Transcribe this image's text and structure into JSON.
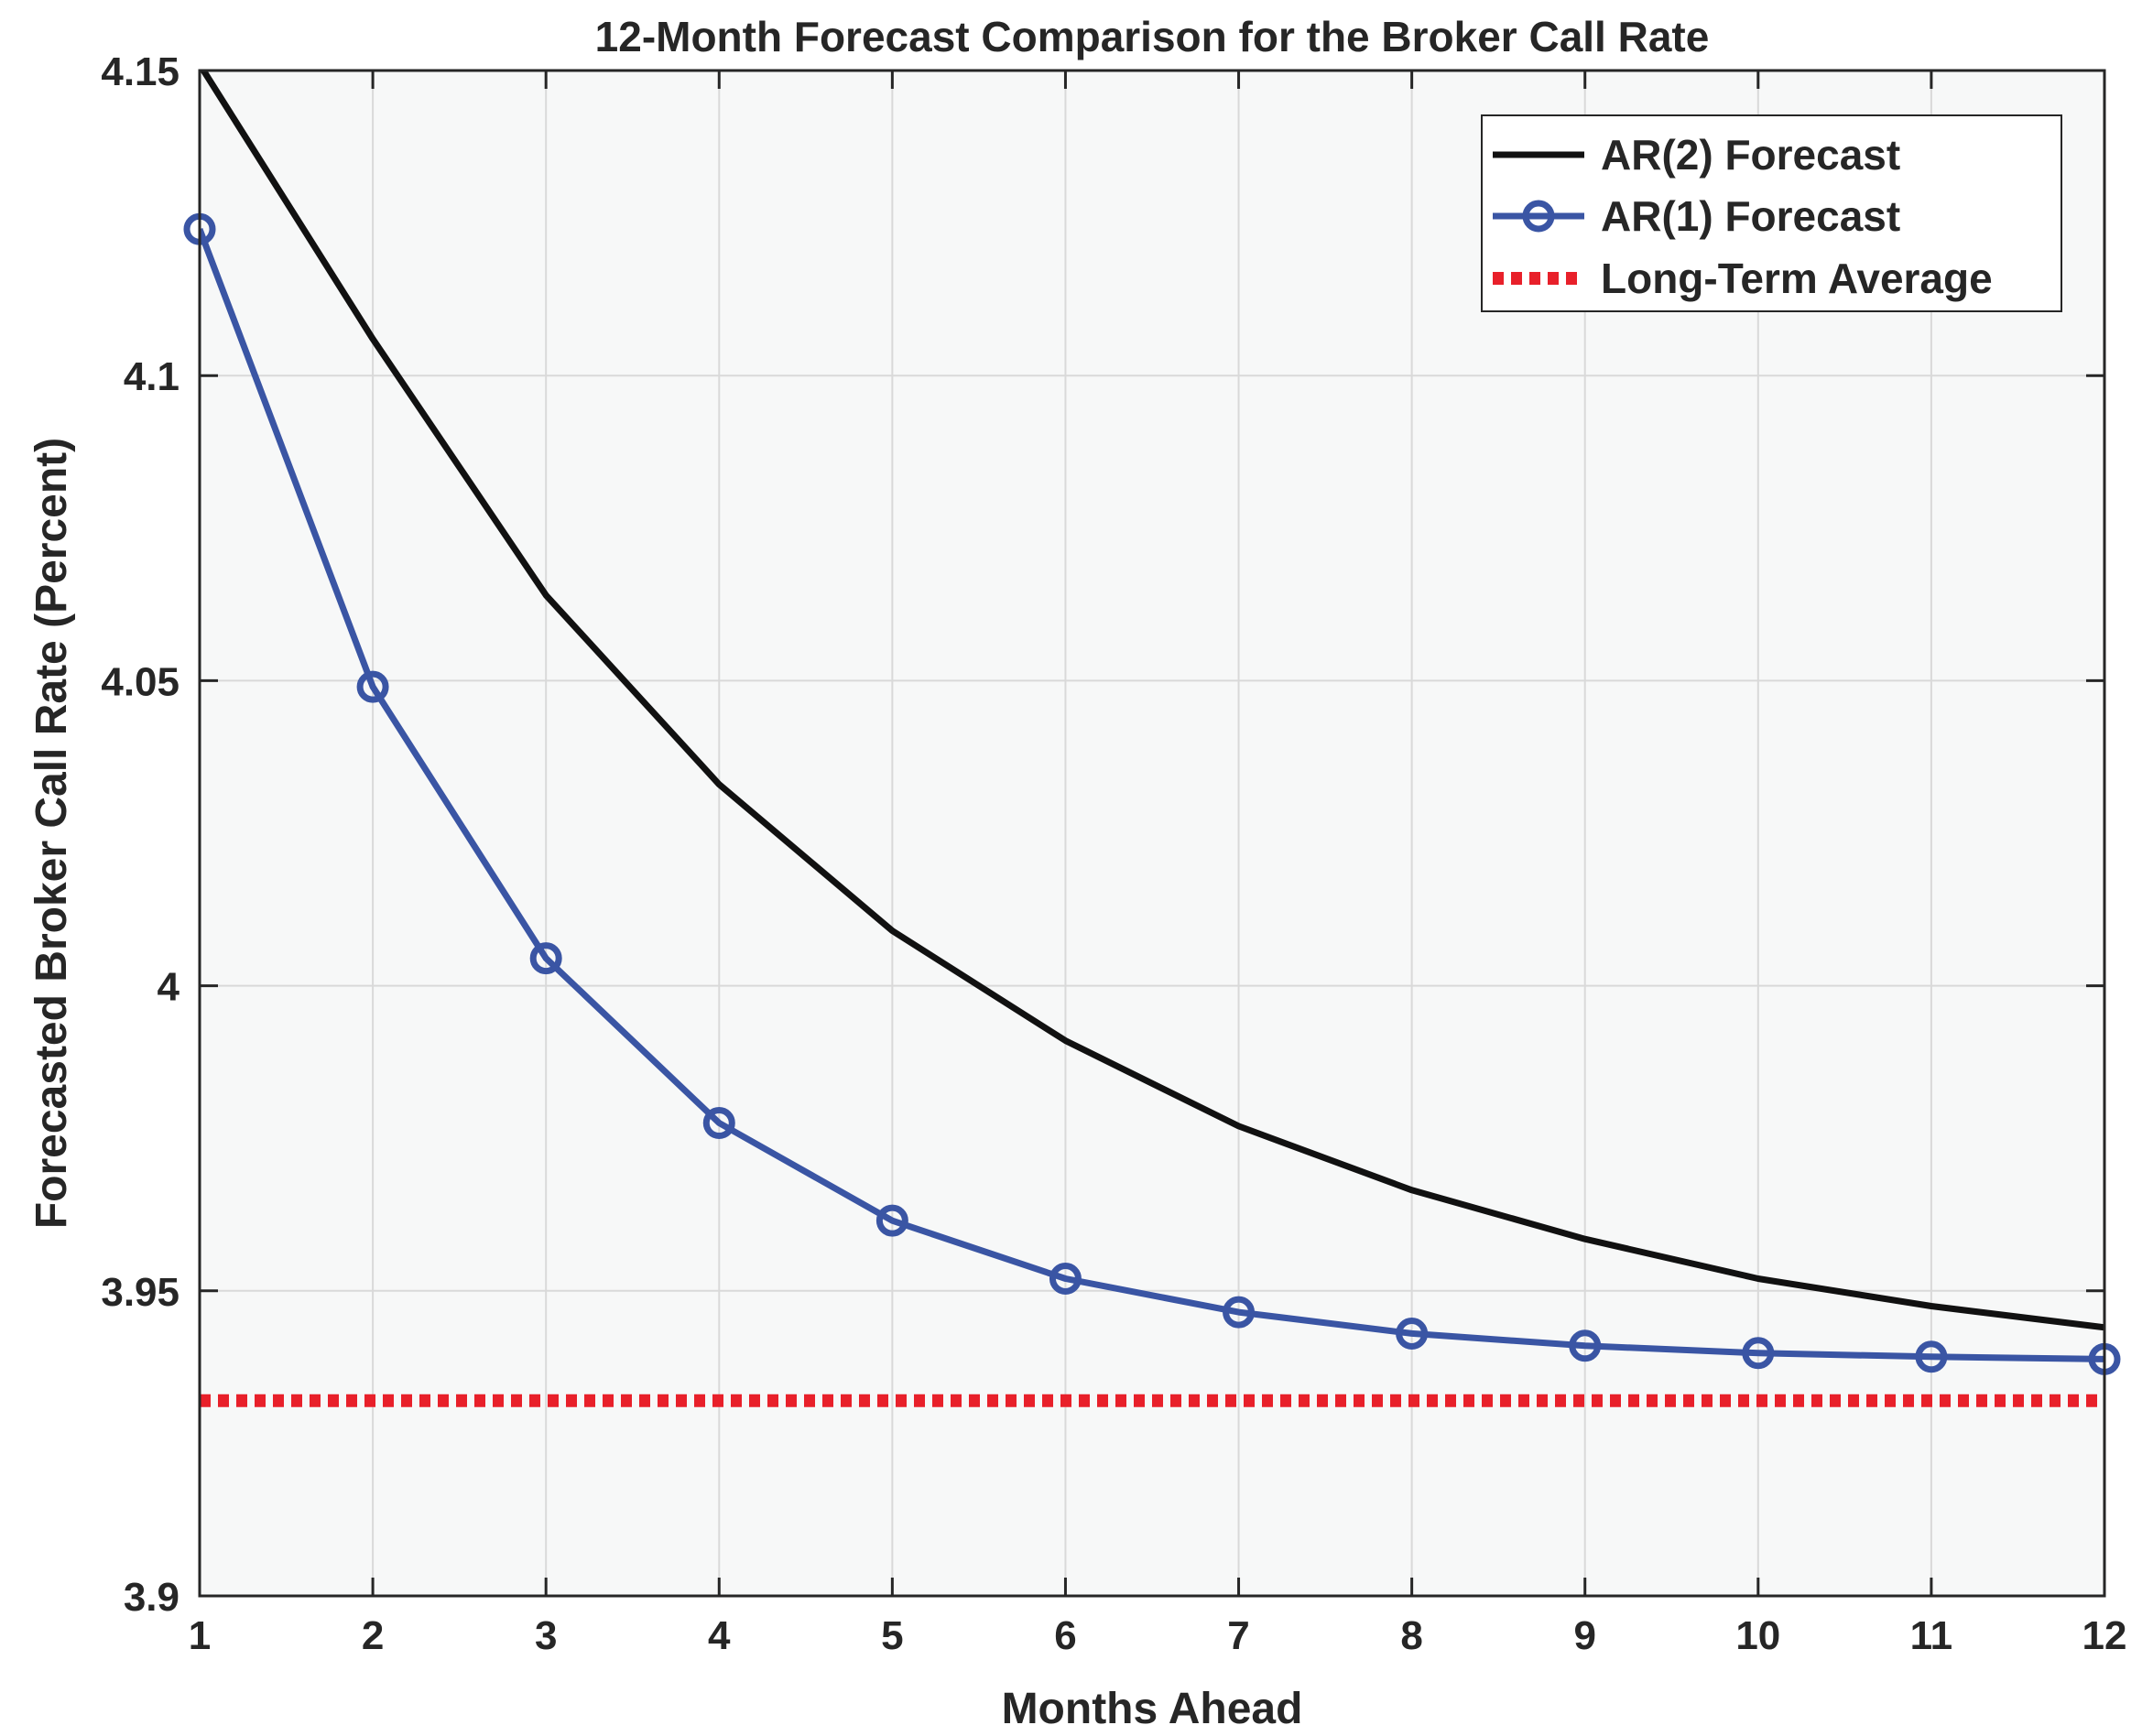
{
  "chart_data": {
    "type": "line",
    "title": "12-Month Forecast Comparison for the Broker Call Rate",
    "xlabel": "Months Ahead",
    "ylabel": "Forecasted Broker Call Rate (Percent)",
    "xlim": [
      1,
      12
    ],
    "ylim": [
      3.9,
      4.15
    ],
    "xticks": [
      "1",
      "2",
      "3",
      "4",
      "5",
      "6",
      "7",
      "8",
      "9",
      "10",
      "11",
      "12"
    ],
    "yticks": [
      "3.9",
      "3.95",
      "4",
      "4.05",
      "4.1",
      "4.15"
    ],
    "xtick_values": [
      1,
      2,
      3,
      4,
      5,
      6,
      7,
      8,
      9,
      10,
      11,
      12
    ],
    "ytick_values": [
      3.9,
      3.95,
      4.0,
      4.05,
      4.1,
      4.15
    ],
    "grid": true,
    "legend_position": "top-right",
    "background_color": "#f7f8f8",
    "series": [
      {
        "name": "AR(2) Forecast",
        "style": "solid",
        "marker": "none",
        "color": "#111111",
        "x": [
          1,
          2,
          3,
          4,
          5,
          6,
          7,
          8,
          9,
          10,
          11,
          12
        ],
        "values": [
          4.151,
          4.106,
          4.064,
          4.033,
          4.009,
          3.991,
          3.977,
          3.9665,
          3.9585,
          3.952,
          3.9475,
          3.944
        ]
      },
      {
        "name": "AR(1) Forecast",
        "style": "solid",
        "marker": "circle",
        "color": "#3a55a4",
        "x": [
          1,
          2,
          3,
          4,
          5,
          6,
          7,
          8,
          9,
          10,
          11,
          12
        ],
        "values": [
          4.124,
          4.049,
          4.0045,
          3.9775,
          3.9615,
          3.952,
          3.9465,
          3.943,
          3.941,
          3.9398,
          3.9392,
          3.9388
        ]
      },
      {
        "name": "Long-Term Average",
        "style": "dotted",
        "marker": "none",
        "color": "#e8202a",
        "x": [
          1,
          12
        ],
        "values": [
          3.932,
          3.932
        ]
      }
    ]
  }
}
